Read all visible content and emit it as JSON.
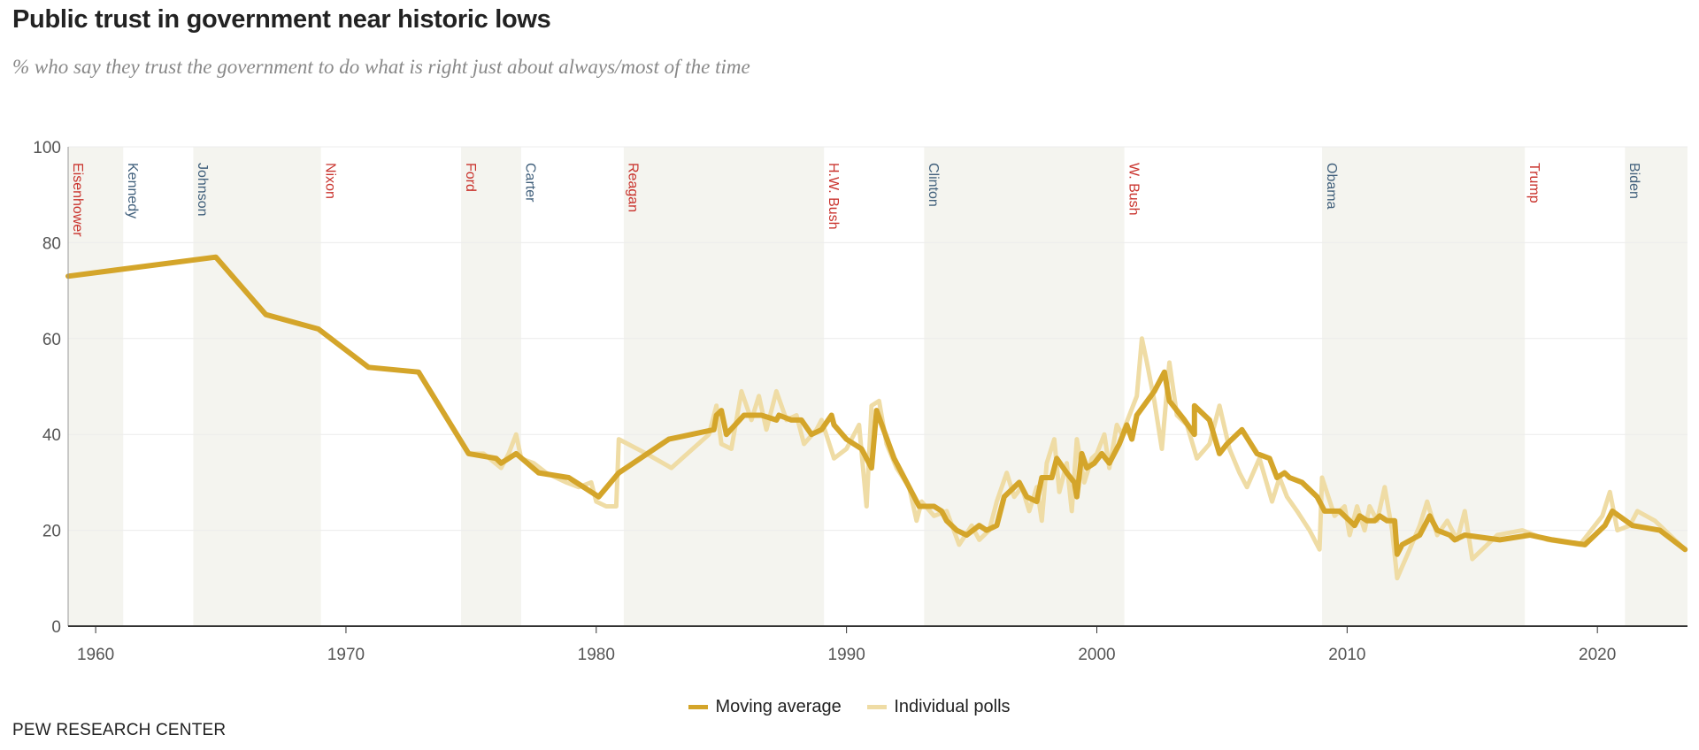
{
  "title": "Public trust in government near historic lows",
  "subtitle": "% who say they trust the government to do what is right just about always/most of the time",
  "source": "PEW RESEARCH CENTER",
  "legend": [
    {
      "label": "Moving average",
      "color": "#d4a52a"
    },
    {
      "label": "Individual polls",
      "color": "#efdca5"
    }
  ],
  "colors": {
    "republican": "#c9322c",
    "democrat": "#41607c",
    "shade": "#f4f4ef",
    "grid": "#ececec",
    "axis": "#333333"
  },
  "chart_data": {
    "type": "line",
    "title": "Public trust in government near historic lows",
    "xlabel": "",
    "ylabel": "",
    "xlim": [
      1958.9,
      2023.6
    ],
    "ylim": [
      0,
      100
    ],
    "yticks": [
      0,
      20,
      40,
      60,
      80,
      100
    ],
    "xticks": [
      1960,
      1970,
      1980,
      1990,
      2000,
      2010,
      2020
    ],
    "presidents": [
      {
        "name": "Eisenhower",
        "start": 1958.9,
        "end": 1961.1,
        "party": "R",
        "shaded": true
      },
      {
        "name": "Kennedy",
        "start": 1961.1,
        "end": 1963.9,
        "party": "D",
        "shaded": false
      },
      {
        "name": "Johnson",
        "start": 1963.9,
        "end": 1969.0,
        "party": "D",
        "shaded": true
      },
      {
        "name": "Nixon",
        "start": 1969.0,
        "end": 1974.6,
        "party": "R",
        "shaded": false
      },
      {
        "name": "Ford",
        "start": 1974.6,
        "end": 1977.0,
        "party": "R",
        "shaded": true
      },
      {
        "name": "Carter",
        "start": 1977.0,
        "end": 1981.1,
        "party": "D",
        "shaded": false
      },
      {
        "name": "Reagan",
        "start": 1981.1,
        "end": 1989.1,
        "party": "R",
        "shaded": true
      },
      {
        "name": "H.W. Bush",
        "start": 1989.1,
        "end": 1993.1,
        "party": "R",
        "shaded": false
      },
      {
        "name": "Clinton",
        "start": 1993.1,
        "end": 2001.1,
        "party": "D",
        "shaded": true
      },
      {
        "name": "W. Bush",
        "start": 2001.1,
        "end": 2009.0,
        "party": "R",
        "shaded": false
      },
      {
        "name": "Obama",
        "start": 2009.0,
        "end": 2017.1,
        "party": "D",
        "shaded": true
      },
      {
        "name": "Trump",
        "start": 2017.1,
        "end": 2021.1,
        "party": "R",
        "shaded": false
      },
      {
        "name": "Biden",
        "start": 2021.1,
        "end": 2023.6,
        "party": "D",
        "shaded": true
      }
    ],
    "series": [
      {
        "name": "Individual polls",
        "points": [
          [
            1975.0,
            36
          ],
          [
            1975.5,
            36
          ],
          [
            1976.2,
            33
          ],
          [
            1976.5,
            36
          ],
          [
            1976.8,
            40
          ],
          [
            1977.0,
            35
          ],
          [
            1977.5,
            34
          ],
          [
            1978.0,
            32
          ],
          [
            1978.8,
            30
          ],
          [
            1979.3,
            29
          ],
          [
            1979.8,
            30
          ],
          [
            1980.0,
            26
          ],
          [
            1980.4,
            25
          ],
          [
            1980.8,
            25
          ],
          [
            1980.9,
            39
          ],
          [
            1982.0,
            36
          ],
          [
            1983.0,
            33
          ],
          [
            1984.5,
            40
          ],
          [
            1984.8,
            46
          ],
          [
            1985.0,
            38
          ],
          [
            1985.4,
            37
          ],
          [
            1985.8,
            49
          ],
          [
            1986.2,
            43
          ],
          [
            1986.5,
            48
          ],
          [
            1986.8,
            41
          ],
          [
            1987.2,
            49
          ],
          [
            1987.6,
            43
          ],
          [
            1988.0,
            44
          ],
          [
            1988.3,
            38
          ],
          [
            1988.8,
            41
          ],
          [
            1989.0,
            43
          ],
          [
            1989.5,
            35
          ],
          [
            1990.0,
            37
          ],
          [
            1990.5,
            42
          ],
          [
            1990.8,
            25
          ],
          [
            1991.0,
            46
          ],
          [
            1991.3,
            47
          ],
          [
            1991.6,
            38
          ],
          [
            1992.0,
            33
          ],
          [
            1992.5,
            29
          ],
          [
            1992.8,
            22
          ],
          [
            1993.0,
            26
          ],
          [
            1993.5,
            23
          ],
          [
            1994.0,
            24
          ],
          [
            1994.5,
            17
          ],
          [
            1995.0,
            21
          ],
          [
            1995.3,
            18
          ],
          [
            1995.7,
            20
          ],
          [
            1996.0,
            26
          ],
          [
            1996.4,
            32
          ],
          [
            1996.7,
            27
          ],
          [
            1997.0,
            29
          ],
          [
            1997.3,
            24
          ],
          [
            1997.6,
            29
          ],
          [
            1997.8,
            22
          ],
          [
            1998.0,
            34
          ],
          [
            1998.3,
            39
          ],
          [
            1998.5,
            28
          ],
          [
            1998.8,
            34
          ],
          [
            1999.0,
            24
          ],
          [
            1999.2,
            39
          ],
          [
            1999.5,
            30
          ],
          [
            1999.8,
            35
          ],
          [
            2000.0,
            36
          ],
          [
            2000.3,
            40
          ],
          [
            2000.5,
            33
          ],
          [
            2000.8,
            42
          ],
          [
            2001.0,
            40
          ],
          [
            2001.3,
            44
          ],
          [
            2001.6,
            48
          ],
          [
            2001.8,
            60
          ],
          [
            2002.0,
            55
          ],
          [
            2002.3,
            47
          ],
          [
            2002.6,
            37
          ],
          [
            2002.9,
            55
          ],
          [
            2003.2,
            44
          ],
          [
            2003.6,
            42
          ],
          [
            2004.0,
            35
          ],
          [
            2004.5,
            38
          ],
          [
            2004.9,
            46
          ],
          [
            2005.3,
            37
          ],
          [
            2005.7,
            32
          ],
          [
            2006.0,
            29
          ],
          [
            2006.5,
            35
          ],
          [
            2007.0,
            26
          ],
          [
            2007.3,
            31
          ],
          [
            2007.6,
            27
          ],
          [
            2008.0,
            24
          ],
          [
            2008.5,
            20
          ],
          [
            2008.9,
            16
          ],
          [
            2009.0,
            31
          ],
          [
            2009.5,
            23
          ],
          [
            2009.9,
            25
          ],
          [
            2010.1,
            19
          ],
          [
            2010.4,
            25
          ],
          [
            2010.7,
            20
          ],
          [
            2010.9,
            25
          ],
          [
            2011.2,
            22
          ],
          [
            2011.5,
            29
          ],
          [
            2011.8,
            20
          ],
          [
            2012.0,
            10
          ],
          [
            2012.5,
            16
          ],
          [
            2012.9,
            21
          ],
          [
            2013.2,
            26
          ],
          [
            2013.6,
            19
          ],
          [
            2014.0,
            22
          ],
          [
            2014.4,
            18
          ],
          [
            2014.7,
            24
          ],
          [
            2015.0,
            14
          ],
          [
            2015.6,
            17
          ],
          [
            2016.0,
            19
          ],
          [
            2017.0,
            20
          ],
          [
            2018.0,
            18
          ],
          [
            2019.3,
            17
          ],
          [
            2020.2,
            23
          ],
          [
            2020.5,
            28
          ],
          [
            2020.8,
            20
          ],
          [
            2021.3,
            21
          ],
          [
            2021.6,
            24
          ],
          [
            2022.3,
            22
          ],
          [
            2023.5,
            16
          ]
        ]
      },
      {
        "name": "Moving average",
        "points": [
          [
            1958.9,
            73
          ],
          [
            1964.8,
            77
          ],
          [
            1966.8,
            65
          ],
          [
            1968.9,
            62
          ],
          [
            1970.9,
            54
          ],
          [
            1972.9,
            53
          ],
          [
            1974.9,
            36
          ],
          [
            1976.0,
            35
          ],
          [
            1976.2,
            34
          ],
          [
            1976.8,
            36
          ],
          [
            1977.7,
            32
          ],
          [
            1978.9,
            31
          ],
          [
            1980.1,
            27
          ],
          [
            1980.9,
            32
          ],
          [
            1982.9,
            39
          ],
          [
            1984.7,
            41
          ],
          [
            1984.8,
            44
          ],
          [
            1985.0,
            45
          ],
          [
            1985.2,
            40
          ],
          [
            1985.9,
            44
          ],
          [
            1986.6,
            44
          ],
          [
            1987.2,
            43
          ],
          [
            1987.3,
            44
          ],
          [
            1987.8,
            43
          ],
          [
            1988.2,
            43
          ],
          [
            1988.6,
            40
          ],
          [
            1989.0,
            41
          ],
          [
            1989.4,
            44
          ],
          [
            1989.5,
            42
          ],
          [
            1990.0,
            39
          ],
          [
            1990.6,
            37
          ],
          [
            1991.0,
            33
          ],
          [
            1991.2,
            45
          ],
          [
            1991.9,
            35
          ],
          [
            1992.9,
            25
          ],
          [
            1993.5,
            25
          ],
          [
            1993.8,
            24
          ],
          [
            1994.0,
            22
          ],
          [
            1994.4,
            20
          ],
          [
            1994.8,
            19
          ],
          [
            1995.3,
            21
          ],
          [
            1995.6,
            20
          ],
          [
            1996.0,
            21
          ],
          [
            1996.3,
            27
          ],
          [
            1996.9,
            30
          ],
          [
            1997.2,
            27
          ],
          [
            1997.6,
            26
          ],
          [
            1997.8,
            31
          ],
          [
            1998.2,
            31
          ],
          [
            1998.4,
            35
          ],
          [
            1998.8,
            32
          ],
          [
            1999.1,
            30
          ],
          [
            1999.2,
            27
          ],
          [
            1999.4,
            36
          ],
          [
            1999.6,
            33
          ],
          [
            1999.9,
            34
          ],
          [
            2000.2,
            36
          ],
          [
            2000.5,
            34
          ],
          [
            2000.9,
            38
          ],
          [
            2001.2,
            42
          ],
          [
            2001.4,
            39
          ],
          [
            2001.6,
            44
          ],
          [
            2002.3,
            49
          ],
          [
            2002.7,
            53
          ],
          [
            2002.9,
            47
          ],
          [
            2003.5,
            43
          ],
          [
            2003.9,
            40
          ],
          [
            2003.9,
            46
          ],
          [
            2004.5,
            43
          ],
          [
            2004.9,
            36
          ],
          [
            2005.2,
            38
          ],
          [
            2005.8,
            41
          ],
          [
            2006.4,
            36
          ],
          [
            2006.9,
            35
          ],
          [
            2007.2,
            31
          ],
          [
            2007.5,
            32
          ],
          [
            2007.7,
            31
          ],
          [
            2008.2,
            30
          ],
          [
            2008.8,
            27
          ],
          [
            2009.1,
            24
          ],
          [
            2009.7,
            24
          ],
          [
            2010.3,
            21
          ],
          [
            2010.5,
            23
          ],
          [
            2010.8,
            22
          ],
          [
            2011.1,
            22
          ],
          [
            2011.3,
            23
          ],
          [
            2011.6,
            22
          ],
          [
            2011.9,
            22
          ],
          [
            2012.0,
            15
          ],
          [
            2012.2,
            17
          ],
          [
            2012.9,
            19
          ],
          [
            2013.3,
            23
          ],
          [
            2013.6,
            20
          ],
          [
            2014.1,
            19
          ],
          [
            2014.3,
            18
          ],
          [
            2014.7,
            19
          ],
          [
            2016.1,
            18
          ],
          [
            2017.3,
            19
          ],
          [
            2018.2,
            18
          ],
          [
            2019.5,
            17
          ],
          [
            2020.3,
            21
          ],
          [
            2020.6,
            24
          ],
          [
            2021.4,
            21
          ],
          [
            2022.5,
            20
          ],
          [
            2023.5,
            16
          ]
        ]
      }
    ]
  }
}
